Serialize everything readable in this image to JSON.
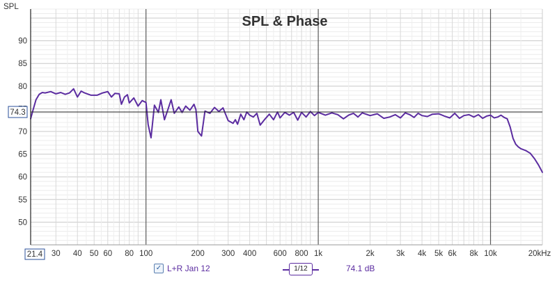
{
  "chart_data": {
    "type": "line",
    "title": "SPL & Phase",
    "ylabel": "SPL",
    "x_scale": "log",
    "xlim": [
      21.4,
      20000
    ],
    "ylim": [
      45,
      97
    ],
    "y_ticks": [
      50,
      55,
      60,
      65,
      70,
      75,
      80,
      85,
      90
    ],
    "y_tick_labels": [
      "50",
      "55",
      "60",
      "65",
      "70",
      "75",
      "80",
      "85",
      "90"
    ],
    "x_ticks": [
      21.4,
      30,
      40,
      50,
      60,
      80,
      100,
      200,
      300,
      400,
      600,
      800,
      1000,
      2000,
      3000,
      4000,
      5000,
      6000,
      8000,
      10000,
      20000
    ],
    "x_tick_labels": [
      "21.4",
      "30",
      "40",
      "50",
      "60",
      "80",
      "100",
      "200",
      "300",
      "400",
      "600",
      "800",
      "1k",
      "2k",
      "3k",
      "4k",
      "5k",
      "6k",
      "8k",
      "10k",
      "20kHz"
    ],
    "cursor": {
      "x": 21.4,
      "y": 74.3,
      "x_label": "21.4",
      "y_label": "74.3"
    },
    "series": [
      {
        "name": "L+R Jan 12",
        "color": "#5b2ca0",
        "x": [
          21.4,
          22,
          23,
          24,
          25,
          26,
          28,
          30,
          32,
          34,
          36,
          38,
          40,
          42,
          44,
          48,
          52,
          56,
          60,
          63,
          66,
          70,
          72,
          75,
          78,
          80,
          85,
          90,
          95,
          100,
          103,
          107,
          112,
          118,
          122,
          128,
          134,
          140,
          146,
          155,
          162,
          170,
          180,
          190,
          195,
          200,
          210,
          220,
          235,
          250,
          265,
          280,
          300,
          320,
          330,
          340,
          355,
          370,
          385,
          400,
          420,
          440,
          460,
          490,
          520,
          550,
          580,
          600,
          640,
          680,
          720,
          760,
          800,
          850,
          900,
          950,
          1000,
          1100,
          1200,
          1300,
          1400,
          1500,
          1600,
          1700,
          1800,
          2000,
          2200,
          2400,
          2600,
          2800,
          3000,
          3200,
          3400,
          3600,
          3800,
          4000,
          4300,
          4600,
          5000,
          5400,
          5800,
          6200,
          6600,
          7000,
          7500,
          8000,
          8500,
          9000,
          9500,
          10000,
          10500,
          11000,
          11500,
          12000,
          12500,
          13000,
          13500,
          14000,
          14500,
          15000,
          16000,
          17000,
          18000,
          19000,
          20000
        ],
        "y": [
          72.8,
          74.5,
          77.0,
          78.2,
          78.6,
          78.5,
          78.8,
          78.3,
          78.6,
          78.2,
          78.5,
          79.4,
          77.6,
          78.9,
          78.5,
          78.0,
          78.0,
          78.5,
          78.8,
          77.6,
          78.4,
          78.3,
          76.0,
          77.6,
          78.1,
          76.3,
          77.4,
          75.6,
          76.8,
          76.4,
          71.5,
          68.6,
          75.8,
          74.2,
          77.0,
          72.6,
          74.8,
          77.0,
          74.0,
          75.4,
          74.2,
          75.6,
          74.7,
          76.0,
          74.8,
          70.0,
          69.0,
          74.5,
          74.0,
          75.3,
          74.4,
          75.2,
          72.4,
          71.8,
          72.6,
          71.6,
          73.8,
          72.6,
          74.3,
          73.6,
          73.2,
          74.0,
          71.4,
          72.7,
          73.8,
          72.6,
          74.3,
          73.0,
          74.2,
          73.6,
          74.2,
          72.5,
          74.2,
          73.2,
          74.4,
          73.5,
          74.2,
          73.6,
          74.1,
          73.7,
          72.8,
          73.6,
          74.0,
          73.2,
          74.1,
          73.5,
          73.9,
          72.9,
          73.2,
          73.7,
          73.0,
          74.1,
          73.7,
          73.1,
          74.0,
          73.5,
          73.3,
          73.8,
          73.9,
          73.4,
          73.0,
          74.0,
          72.9,
          73.5,
          73.7,
          73.2,
          73.7,
          72.9,
          73.4,
          73.6,
          73.0,
          73.2,
          73.6,
          73.1,
          72.8,
          71.0,
          68.5,
          67.2,
          66.6,
          66.2,
          65.8,
          65.2,
          64.0,
          62.6,
          61.0
        ]
      }
    ]
  },
  "legend": {
    "checkbox_label": "L+R Jan 12",
    "smoothing_numerator": "1",
    "smoothing_denominator": "12",
    "readout": "74.1 dB"
  },
  "colors": {
    "trace": "#5b2ca0",
    "grid_minor": "#d8d8d8",
    "grid_major": "#5a5a5a",
    "cursor": "#222222"
  }
}
